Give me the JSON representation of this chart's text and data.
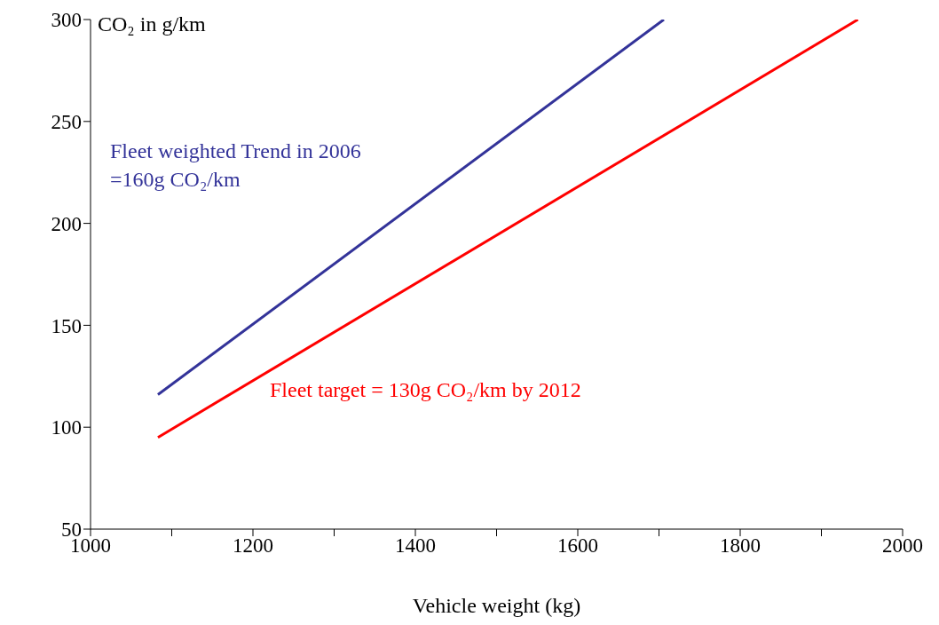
{
  "chart_data": {
    "type": "line",
    "ylabel": "CO₂ in g/km",
    "xlabel": "Vehicle weight (kg)",
    "series": [
      {
        "color": "#333399",
        "x": [
          1083,
          1706
        ],
        "values": [
          116,
          300
        ]
      },
      {
        "color": "#ff0000",
        "x": [
          1083,
          1945
        ],
        "values": [
          95,
          300
        ]
      }
    ],
    "xlim": [
      1000,
      2000
    ],
    "xticks": [
      1000,
      {
        "value": 1100,
        "label": null
      },
      1200,
      {
        "value": 1300,
        "label": null
      },
      1400,
      {
        "value": 1500,
        "label": null
      },
      1600,
      {
        "value": 1700,
        "label": null
      },
      1800,
      {
        "value": 1900,
        "label": null
      },
      2000
    ],
    "ylim": [
      50,
      300
    ],
    "yticks": [
      50,
      100,
      150,
      200,
      250,
      300
    ],
    "annotations": [
      "Fleet weighted Trend in 2006 =160g CO₂/km",
      "Fleet target = 130g CO₂/km by 2012"
    ],
    "grid": false,
    "legend": false,
    "marker": "none",
    "line_style": "solid"
  }
}
